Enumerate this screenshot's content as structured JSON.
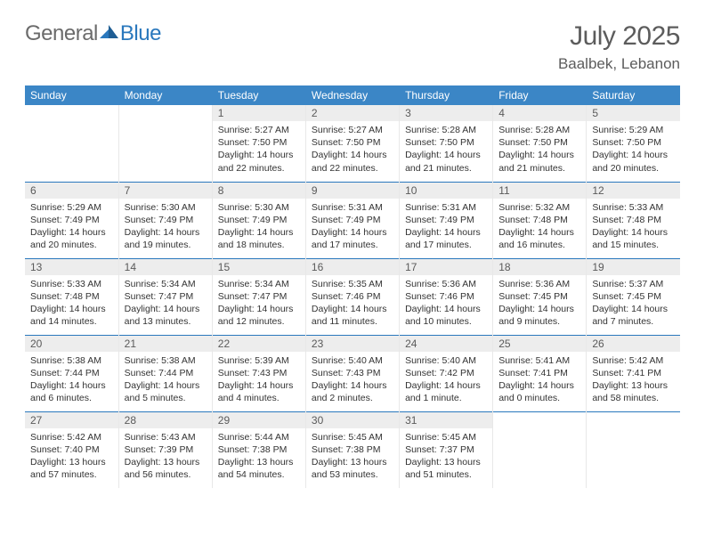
{
  "brand": {
    "part1": "General",
    "part2": "Blue"
  },
  "title": "July 2025",
  "location": "Baalbek, Lebanon",
  "colors": {
    "header_bg": "#3b86c6",
    "header_text": "#ffffff",
    "row_divider": "#2a78bd",
    "daynum_bg": "#ededed",
    "text": "#333333",
    "muted": "#5c5c5c"
  },
  "weekdays": [
    "Sunday",
    "Monday",
    "Tuesday",
    "Wednesday",
    "Thursday",
    "Friday",
    "Saturday"
  ],
  "weeks": [
    [
      null,
      null,
      {
        "n": "1",
        "sunrise": "5:27 AM",
        "sunset": "7:50 PM",
        "daylight": "14 hours and 22 minutes."
      },
      {
        "n": "2",
        "sunrise": "5:27 AM",
        "sunset": "7:50 PM",
        "daylight": "14 hours and 22 minutes."
      },
      {
        "n": "3",
        "sunrise": "5:28 AM",
        "sunset": "7:50 PM",
        "daylight": "14 hours and 21 minutes."
      },
      {
        "n": "4",
        "sunrise": "5:28 AM",
        "sunset": "7:50 PM",
        "daylight": "14 hours and 21 minutes."
      },
      {
        "n": "5",
        "sunrise": "5:29 AM",
        "sunset": "7:50 PM",
        "daylight": "14 hours and 20 minutes."
      }
    ],
    [
      {
        "n": "6",
        "sunrise": "5:29 AM",
        "sunset": "7:49 PM",
        "daylight": "14 hours and 20 minutes."
      },
      {
        "n": "7",
        "sunrise": "5:30 AM",
        "sunset": "7:49 PM",
        "daylight": "14 hours and 19 minutes."
      },
      {
        "n": "8",
        "sunrise": "5:30 AM",
        "sunset": "7:49 PM",
        "daylight": "14 hours and 18 minutes."
      },
      {
        "n": "9",
        "sunrise": "5:31 AM",
        "sunset": "7:49 PM",
        "daylight": "14 hours and 17 minutes."
      },
      {
        "n": "10",
        "sunrise": "5:31 AM",
        "sunset": "7:49 PM",
        "daylight": "14 hours and 17 minutes."
      },
      {
        "n": "11",
        "sunrise": "5:32 AM",
        "sunset": "7:48 PM",
        "daylight": "14 hours and 16 minutes."
      },
      {
        "n": "12",
        "sunrise": "5:33 AM",
        "sunset": "7:48 PM",
        "daylight": "14 hours and 15 minutes."
      }
    ],
    [
      {
        "n": "13",
        "sunrise": "5:33 AM",
        "sunset": "7:48 PM",
        "daylight": "14 hours and 14 minutes."
      },
      {
        "n": "14",
        "sunrise": "5:34 AM",
        "sunset": "7:47 PM",
        "daylight": "14 hours and 13 minutes."
      },
      {
        "n": "15",
        "sunrise": "5:34 AM",
        "sunset": "7:47 PM",
        "daylight": "14 hours and 12 minutes."
      },
      {
        "n": "16",
        "sunrise": "5:35 AM",
        "sunset": "7:46 PM",
        "daylight": "14 hours and 11 minutes."
      },
      {
        "n": "17",
        "sunrise": "5:36 AM",
        "sunset": "7:46 PM",
        "daylight": "14 hours and 10 minutes."
      },
      {
        "n": "18",
        "sunrise": "5:36 AM",
        "sunset": "7:45 PM",
        "daylight": "14 hours and 9 minutes."
      },
      {
        "n": "19",
        "sunrise": "5:37 AM",
        "sunset": "7:45 PM",
        "daylight": "14 hours and 7 minutes."
      }
    ],
    [
      {
        "n": "20",
        "sunrise": "5:38 AM",
        "sunset": "7:44 PM",
        "daylight": "14 hours and 6 minutes."
      },
      {
        "n": "21",
        "sunrise": "5:38 AM",
        "sunset": "7:44 PM",
        "daylight": "14 hours and 5 minutes."
      },
      {
        "n": "22",
        "sunrise": "5:39 AM",
        "sunset": "7:43 PM",
        "daylight": "14 hours and 4 minutes."
      },
      {
        "n": "23",
        "sunrise": "5:40 AM",
        "sunset": "7:43 PM",
        "daylight": "14 hours and 2 minutes."
      },
      {
        "n": "24",
        "sunrise": "5:40 AM",
        "sunset": "7:42 PM",
        "daylight": "14 hours and 1 minute."
      },
      {
        "n": "25",
        "sunrise": "5:41 AM",
        "sunset": "7:41 PM",
        "daylight": "14 hours and 0 minutes."
      },
      {
        "n": "26",
        "sunrise": "5:42 AM",
        "sunset": "7:41 PM",
        "daylight": "13 hours and 58 minutes."
      }
    ],
    [
      {
        "n": "27",
        "sunrise": "5:42 AM",
        "sunset": "7:40 PM",
        "daylight": "13 hours and 57 minutes."
      },
      {
        "n": "28",
        "sunrise": "5:43 AM",
        "sunset": "7:39 PM",
        "daylight": "13 hours and 56 minutes."
      },
      {
        "n": "29",
        "sunrise": "5:44 AM",
        "sunset": "7:38 PM",
        "daylight": "13 hours and 54 minutes."
      },
      {
        "n": "30",
        "sunrise": "5:45 AM",
        "sunset": "7:38 PM",
        "daylight": "13 hours and 53 minutes."
      },
      {
        "n": "31",
        "sunrise": "5:45 AM",
        "sunset": "7:37 PM",
        "daylight": "13 hours and 51 minutes."
      },
      null,
      null
    ]
  ],
  "labels": {
    "sunrise": "Sunrise:",
    "sunset": "Sunset:",
    "daylight": "Daylight:"
  }
}
